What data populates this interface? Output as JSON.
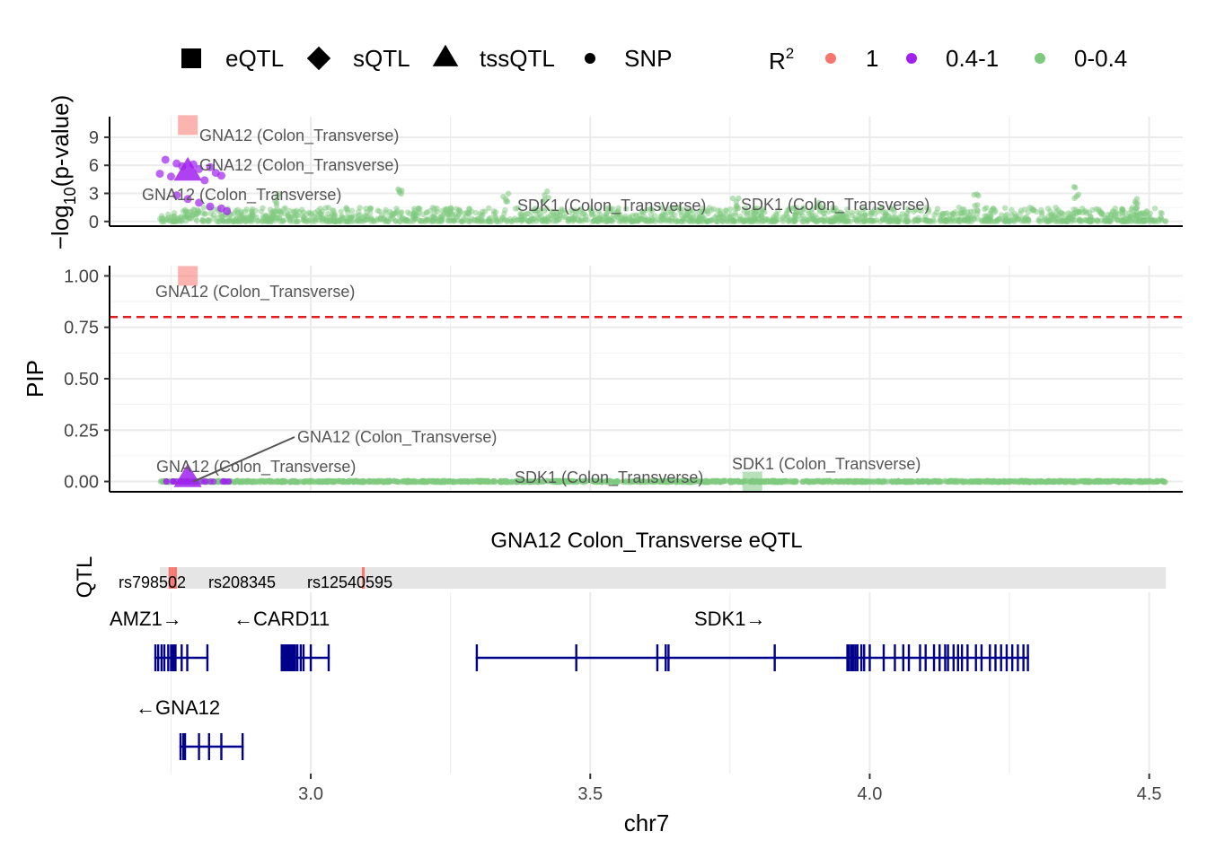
{
  "legend": {
    "shapes": [
      {
        "shape": "square",
        "label": "eQTL"
      },
      {
        "shape": "diamond",
        "label": "sQTL"
      },
      {
        "shape": "triangle",
        "label": "tssQTL"
      },
      {
        "shape": "circle",
        "label": "SNP"
      }
    ],
    "r2_title": "R",
    "r2_sup": "2",
    "r2_items": [
      {
        "label": "1",
        "color": "#f8766d"
      },
      {
        "label": "0.4-1",
        "color": "#a020f0"
      },
      {
        "label": "0-0.4",
        "color": "#7fc97f"
      }
    ]
  },
  "colors": {
    "r2_high": "#f8766d",
    "r2_mid": "#a020f0",
    "r2_low": "#7fc97f",
    "threshold": "#e41a1c",
    "gene": "#00008b",
    "track_bg": "#e5e5e5"
  },
  "chart_data": [
    {
      "type": "scatter",
      "id": "pvalue-panel",
      "ylabel_pre": "−log",
      "ylabel_sub": "10",
      "ylabel_post": "(p-value)",
      "xlim": [
        2.64,
        4.56
      ],
      "ylim": [
        -0.5,
        11.2
      ],
      "yticks": [
        0,
        3,
        6,
        9
      ],
      "grid": true,
      "series": [
        {
          "r2": "1",
          "shape": "square",
          "points": [
            [
              2.78,
              10.3
            ]
          ]
        },
        {
          "r2": "0.4-1",
          "shape": "triangle",
          "points": [
            [
              2.78,
              5.4
            ]
          ]
        },
        {
          "r2": "0.4-1",
          "shape": "circle",
          "points": [
            [
              2.74,
              6.6
            ],
            [
              2.76,
              6.2
            ],
            [
              2.77,
              5.9
            ],
            [
              2.79,
              6.1
            ],
            [
              2.8,
              5.6
            ],
            [
              2.82,
              5.8
            ],
            [
              2.83,
              5.2
            ],
            [
              2.75,
              4.8
            ],
            [
              2.81,
              4.4
            ],
            [
              2.78,
              2.4
            ],
            [
              2.8,
              2.0
            ],
            [
              2.82,
              1.6
            ],
            [
              2.84,
              1.4
            ],
            [
              2.76,
              2.8
            ],
            [
              2.85,
              1.1
            ],
            [
              2.73,
              5.1
            ],
            [
              2.84,
              4.9
            ]
          ]
        }
      ],
      "background_snps": {
        "r2": "0-0.4",
        "x_range": [
          2.73,
          4.53
        ],
        "y_typical_max": 1.5,
        "peaks": [
          [
            2.94,
            3.0
          ],
          [
            3.16,
            3.5
          ],
          [
            3.35,
            3.2
          ],
          [
            3.42,
            3.5
          ],
          [
            3.76,
            2.6
          ],
          [
            3.91,
            2.2
          ],
          [
            4.19,
            3.0
          ],
          [
            4.37,
            3.8
          ],
          [
            4.48,
            2.6
          ]
        ]
      },
      "annotations": [
        {
          "text": "GNA12 (Colon_Transverse)",
          "x": 2.78,
          "y": 10.3
        },
        {
          "text": "GNA12 (Colon_Transverse)",
          "x": 2.78,
          "y": 5.4
        },
        {
          "text": "GNA12 (Colon_Transverse)",
          "x": 2.78,
          "y": 2.8
        },
        {
          "text": "SDK1 (Colon_Transverse)",
          "x": 3.6,
          "y": 1.6
        },
        {
          "text": "SDK1 (Colon_Transverse)",
          "x": 4.0,
          "y": 1.7
        }
      ]
    },
    {
      "type": "scatter",
      "id": "pip-panel",
      "ylabel": "PIP",
      "xlim": [
        2.64,
        4.56
      ],
      "ylim": [
        -0.05,
        1.05
      ],
      "yticks": [
        0.0,
        0.25,
        0.5,
        0.75,
        1.0
      ],
      "ytick_labels": [
        "0.00",
        "0.25",
        "0.50",
        "0.75",
        "1.00"
      ],
      "threshold": 0.8,
      "grid": true,
      "series": [
        {
          "r2": "1",
          "shape": "square",
          "points": [
            [
              2.78,
              1.0
            ]
          ]
        },
        {
          "r2": "0.4-1",
          "shape": "triangle",
          "points": [
            [
              2.78,
              0.02
            ]
          ]
        },
        {
          "r2": "0-0.4",
          "shape": "square",
          "points": [
            [
              3.79,
              0.0
            ]
          ]
        }
      ],
      "annotations": [
        {
          "text": "GNA12 (Colon_Transverse)",
          "x": 2.78,
          "y": 1.0
        },
        {
          "text": "GNA12 (Colon_Transverse)",
          "x": 2.78,
          "y": 0.02
        },
        {
          "text": "GNA12 (Colon_Transverse)",
          "x": 2.78,
          "y": 0.02
        },
        {
          "text": "SDK1 (Colon_Transverse)",
          "x": 3.6,
          "y": 0.0
        },
        {
          "text": "SDK1 (Colon_Transverse)",
          "x": 3.79,
          "y": 0.0
        }
      ]
    },
    {
      "type": "gene-track",
      "id": "locus-track",
      "title": "GNA12 Colon_Transverse eQTL",
      "ylabel": "QTL",
      "xlabel": "chr7",
      "xlim": [
        2.64,
        4.56
      ],
      "xticks": [
        3.0,
        3.5,
        4.0,
        4.5
      ],
      "xtick_labels": [
        "3.0",
        "3.5",
        "4.0",
        "4.5"
      ],
      "qtl_range": [
        2.73,
        4.53
      ],
      "qtl_marks": [
        2.748,
        2.753,
        2.758,
        3.094
      ],
      "snp_labels": [
        {
          "text": "rs798502",
          "x": 2.75
        },
        {
          "text": "rs208345",
          "x": 2.9
        },
        {
          "text": "rs12540595",
          "x": 3.094
        }
      ],
      "genes": [
        {
          "name": "AMZ1",
          "strand": "+",
          "start": 2.72,
          "end": 2.817,
          "row": 0,
          "exons": [
            2.722,
            2.727,
            2.733,
            2.738,
            2.745,
            2.75,
            2.752,
            2.755,
            2.758,
            2.769,
            2.779,
            2.815
          ]
        },
        {
          "name": "CARD11",
          "strand": "-",
          "start": 2.946,
          "end": 3.034,
          "row": 0,
          "exons": [
            2.948,
            2.95,
            2.953,
            2.955,
            2.958,
            2.96,
            2.962,
            2.965,
            2.968,
            2.97,
            2.972,
            2.976,
            2.982,
            2.987,
            3.0,
            3.032
          ]
        },
        {
          "name": "SDK1",
          "strand": "+",
          "start": 3.295,
          "end": 4.285,
          "row": 0,
          "exons": [
            3.297,
            3.475,
            3.62,
            3.635,
            3.64,
            3.83,
            3.96,
            3.963,
            3.967,
            3.97,
            3.974,
            3.978,
            3.985,
            3.99,
            4.0,
            4.025,
            4.045,
            4.06,
            4.07,
            4.09,
            4.1,
            4.115,
            4.125,
            4.135,
            4.14,
            4.15,
            4.158,
            4.165,
            4.175,
            4.19,
            4.2,
            4.215,
            4.225,
            4.235,
            4.245,
            4.255,
            4.265,
            4.275,
            4.283
          ]
        },
        {
          "name": "GNA12",
          "strand": "-",
          "start": 2.765,
          "end": 2.88,
          "row": 1,
          "exons": [
            2.767,
            2.772,
            2.775,
            2.8,
            2.818,
            2.84,
            2.878
          ]
        }
      ]
    }
  ]
}
